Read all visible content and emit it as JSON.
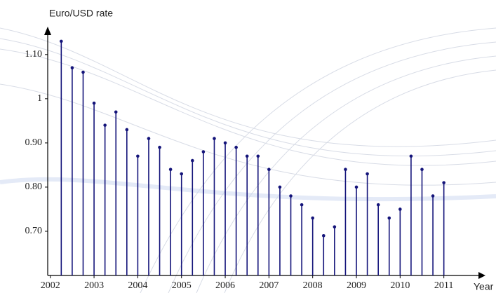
{
  "chart_data": {
    "type": "stem",
    "y_label": "Euro/USD rate",
    "x_label": "Year",
    "color": "#14147a",
    "x": [
      2002.25,
      2002.5,
      2002.75,
      2003,
      2003.25,
      2003.5,
      2003.75,
      2004,
      2004.25,
      2004.5,
      2004.75,
      2005,
      2005.25,
      2005.5,
      2005.75,
      2006,
      2006.25,
      2006.5,
      2006.75,
      2007,
      2007.25,
      2007.5,
      2007.75,
      2008,
      2008.25,
      2008.5,
      2008.75,
      2009,
      2009.25,
      2009.5,
      2009.75,
      2010,
      2010.25,
      2010.5,
      2010.75,
      2011
    ],
    "values": [
      1.13,
      1.07,
      1.06,
      0.99,
      0.94,
      0.97,
      0.93,
      0.87,
      0.91,
      0.89,
      0.84,
      0.83,
      0.86,
      0.88,
      0.91,
      0.9,
      0.89,
      0.87,
      0.87,
      0.84,
      0.8,
      0.78,
      0.76,
      0.73,
      0.69,
      0.71,
      0.84,
      0.8,
      0.83,
      0.76,
      0.73,
      0.75,
      0.87,
      0.84,
      0.78,
      0.81
    ],
    "xlim": [
      2001.94,
      2011.92
    ],
    "ylim": [
      0.6,
      1.16
    ],
    "xticks": [
      2002,
      2003,
      2004,
      2005,
      2006,
      2007,
      2008,
      2009,
      2010,
      2011
    ],
    "yticks": [
      {
        "value": 0.7,
        "label": "0.70"
      },
      {
        "value": 0.8,
        "label": "0.80"
      },
      {
        "value": 0.9,
        "label": "0.90"
      },
      1,
      {
        "value": 1.1,
        "label": "1.10"
      }
    ]
  }
}
